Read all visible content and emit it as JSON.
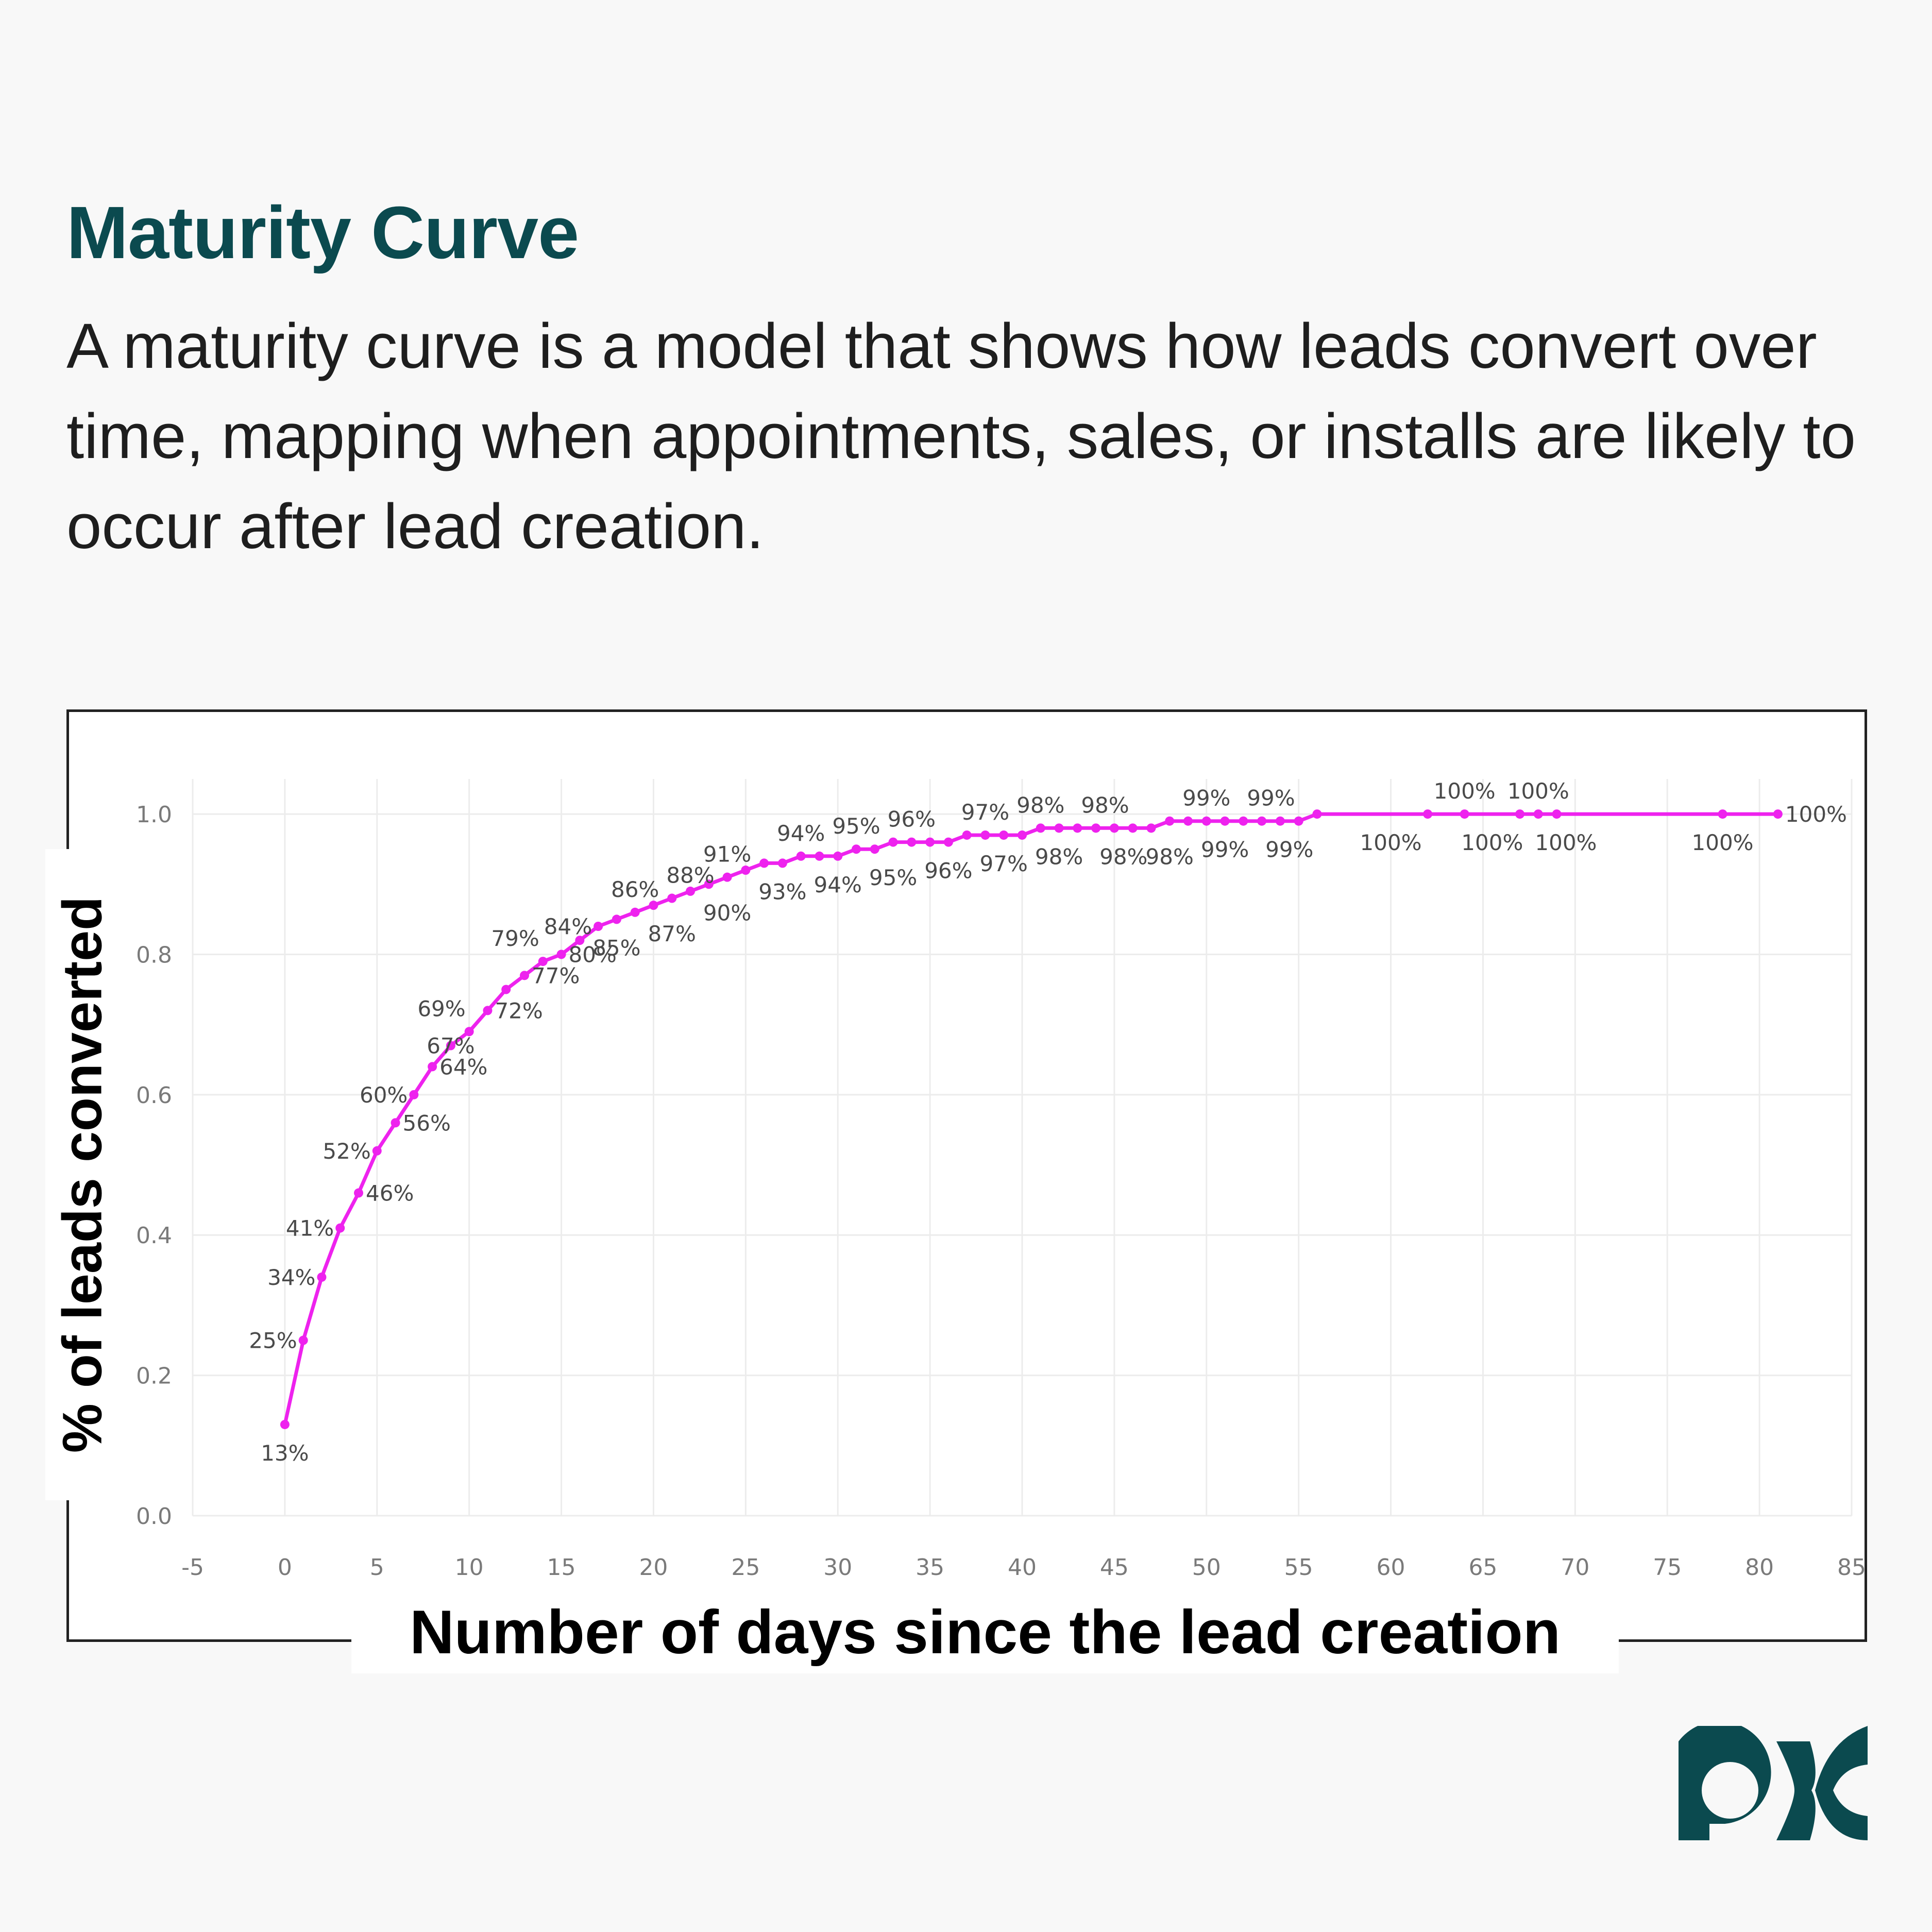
{
  "heading": {
    "title": "Maturity Curve",
    "description": "A maturity curve is a model that shows how leads convert over time, mapping when appointments, sales, or installs are likely to occur after lead creation."
  },
  "brand": {
    "logo_icon": "px-logo-icon",
    "color": "#0b4a4f"
  },
  "chart_data": {
    "type": "line",
    "xlabel": "Number of days since the lead creation",
    "ylabel": "% of leads converted",
    "xlim": [
      -5,
      85
    ],
    "ylim": [
      0,
      1.05
    ],
    "x_ticks": [
      -5,
      0,
      5,
      10,
      15,
      20,
      25,
      30,
      35,
      40,
      45,
      50,
      55,
      60,
      65,
      70,
      75,
      80,
      85
    ],
    "y_ticks": [
      0.0,
      0.2,
      0.4,
      0.6,
      0.8,
      1.0
    ],
    "y_tick_labels": [
      "0.0",
      "0.2",
      "0.4",
      "0.6",
      "0.8",
      "1.0"
    ],
    "grid": true,
    "line_color": "#ee22ee",
    "series": [
      {
        "x": [
          0,
          1,
          2,
          3,
          4,
          5,
          6,
          7,
          8,
          9,
          10,
          11,
          12,
          13,
          14,
          15,
          16,
          17,
          18,
          19,
          20,
          21,
          22,
          23,
          24,
          25,
          26,
          27,
          28,
          29,
          30,
          31,
          32,
          33,
          34,
          35,
          36,
          37,
          38,
          39,
          40,
          41,
          42,
          43,
          44,
          45,
          46,
          47,
          48,
          49,
          50,
          51,
          52,
          53,
          54,
          55,
          56,
          62,
          64,
          67,
          68,
          69,
          78,
          81
        ],
        "y": [
          0.13,
          0.25,
          0.34,
          0.41,
          0.46,
          0.52,
          0.56,
          0.6,
          0.64,
          0.67,
          0.69,
          0.72,
          0.75,
          0.77,
          0.79,
          0.8,
          0.82,
          0.84,
          0.85,
          0.86,
          0.87,
          0.88,
          0.89,
          0.9,
          0.91,
          0.92,
          0.93,
          0.93,
          0.94,
          0.94,
          0.94,
          0.95,
          0.95,
          0.96,
          0.96,
          0.96,
          0.96,
          0.97,
          0.97,
          0.97,
          0.97,
          0.98,
          0.98,
          0.98,
          0.98,
          0.98,
          0.98,
          0.98,
          0.99,
          0.99,
          0.99,
          0.99,
          0.99,
          0.99,
          0.99,
          0.99,
          1.0,
          1.0,
          1.0,
          1.0,
          1.0,
          1.0,
          1.0,
          1.0
        ]
      }
    ],
    "data_labels": [
      {
        "x": 0,
        "y": 0.13,
        "text": "13%",
        "pos": "below"
      },
      {
        "x": 1,
        "y": 0.25,
        "text": "25%",
        "pos": "left"
      },
      {
        "x": 2,
        "y": 0.34,
        "text": "34%",
        "pos": "left"
      },
      {
        "x": 3,
        "y": 0.41,
        "text": "41%",
        "pos": "left"
      },
      {
        "x": 4,
        "y": 0.46,
        "text": "46%",
        "pos": "right"
      },
      {
        "x": 5,
        "y": 0.52,
        "text": "52%",
        "pos": "left"
      },
      {
        "x": 6,
        "y": 0.56,
        "text": "56%",
        "pos": "right"
      },
      {
        "x": 7,
        "y": 0.6,
        "text": "60%",
        "pos": "left"
      },
      {
        "x": 8,
        "y": 0.64,
        "text": "64%",
        "pos": "right"
      },
      {
        "x": 9,
        "y": 0.67,
        "text": "67%",
        "pos": "on"
      },
      {
        "x": 8.5,
        "y": 0.69,
        "text": "69%",
        "pos": "above"
      },
      {
        "x": 11,
        "y": 0.72,
        "text": "72%",
        "pos": "right"
      },
      {
        "x": 13,
        "y": 0.77,
        "text": "77%",
        "pos": "right"
      },
      {
        "x": 12.5,
        "y": 0.79,
        "text": "79%",
        "pos": "above"
      },
      {
        "x": 15,
        "y": 0.8,
        "text": "80%",
        "pos": "right"
      },
      {
        "x": 17,
        "y": 0.84,
        "text": "84%",
        "pos": "left"
      },
      {
        "x": 18,
        "y": 0.85,
        "text": "85%",
        "pos": "below"
      },
      {
        "x": 19,
        "y": 0.86,
        "text": "86%",
        "pos": "above"
      },
      {
        "x": 21,
        "y": 0.87,
        "text": "87%",
        "pos": "below"
      },
      {
        "x": 22,
        "y": 0.88,
        "text": "88%",
        "pos": "above"
      },
      {
        "x": 24,
        "y": 0.9,
        "text": "90%",
        "pos": "below"
      },
      {
        "x": 24,
        "y": 0.91,
        "text": "91%",
        "pos": "above"
      },
      {
        "x": 27,
        "y": 0.93,
        "text": "93%",
        "pos": "below"
      },
      {
        "x": 28,
        "y": 0.94,
        "text": "94%",
        "pos": "above"
      },
      {
        "x": 30,
        "y": 0.94,
        "text": "94%",
        "pos": "below"
      },
      {
        "x": 31,
        "y": 0.95,
        "text": "95%",
        "pos": "above"
      },
      {
        "x": 33,
        "y": 0.95,
        "text": "95%",
        "pos": "below"
      },
      {
        "x": 34,
        "y": 0.96,
        "text": "96%",
        "pos": "above"
      },
      {
        "x": 36,
        "y": 0.96,
        "text": "96%",
        "pos": "below"
      },
      {
        "x": 38,
        "y": 0.97,
        "text": "97%",
        "pos": "above"
      },
      {
        "x": 39,
        "y": 0.97,
        "text": "97%",
        "pos": "below"
      },
      {
        "x": 41,
        "y": 0.98,
        "text": "98%",
        "pos": "above"
      },
      {
        "x": 42,
        "y": 0.98,
        "text": "98%",
        "pos": "below"
      },
      {
        "x": 44.5,
        "y": 0.98,
        "text": "98%",
        "pos": "above"
      },
      {
        "x": 45.5,
        "y": 0.98,
        "text": "98%",
        "pos": "below"
      },
      {
        "x": 48,
        "y": 0.98,
        "text": "98%",
        "pos": "below"
      },
      {
        "x": 50,
        "y": 0.99,
        "text": "99%",
        "pos": "above"
      },
      {
        "x": 51,
        "y": 0.99,
        "text": "99%",
        "pos": "below"
      },
      {
        "x": 53.5,
        "y": 0.99,
        "text": "99%",
        "pos": "above"
      },
      {
        "x": 54.5,
        "y": 0.99,
        "text": "99%",
        "pos": "below"
      },
      {
        "x": 60,
        "y": 1.0,
        "text": "100%",
        "pos": "below"
      },
      {
        "x": 64,
        "y": 1.0,
        "text": "100%",
        "pos": "above"
      },
      {
        "x": 65.5,
        "y": 1.0,
        "text": "100%",
        "pos": "below"
      },
      {
        "x": 68,
        "y": 1.0,
        "text": "100%",
        "pos": "above"
      },
      {
        "x": 69.5,
        "y": 1.0,
        "text": "100%",
        "pos": "below"
      },
      {
        "x": 78,
        "y": 1.0,
        "text": "100%",
        "pos": "below"
      },
      {
        "x": 81,
        "y": 1.0,
        "text": "100%",
        "pos": "right"
      }
    ]
  }
}
